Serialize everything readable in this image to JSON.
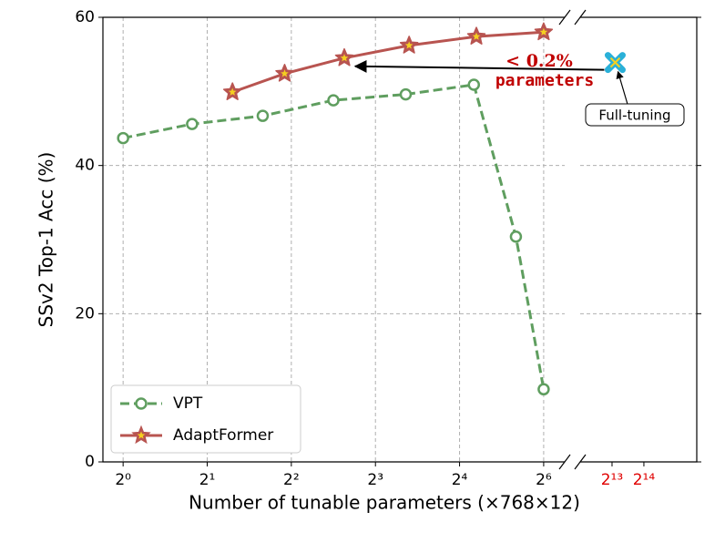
{
  "chart_data": {
    "type": "line",
    "ylabel": "SSv2 Top-1 Acc (%)",
    "xlabel": "Number of tunable parameters (×768×12)",
    "ylim": [
      0,
      60
    ],
    "yticks": [
      0,
      20,
      40,
      60
    ],
    "grid": true,
    "legend": "lower left",
    "x_segments": [
      {
        "xlim": [
          -0.24,
          5.25
        ],
        "tick_color": "#000000",
        "xticks": [
          {
            "value": 0,
            "label": "2⁰"
          },
          {
            "value": 1,
            "label": "2¹"
          },
          {
            "value": 2,
            "label": "2²"
          },
          {
            "value": 3,
            "label": "2³"
          },
          {
            "value": 4,
            "label": "2⁴"
          },
          {
            "value": 5,
            "label": "2⁶"
          }
        ]
      },
      {
        "xlim": [
          12,
          15.66
        ],
        "tick_color": "#e00000",
        "xticks": [
          {
            "value": 13,
            "label": "2¹³"
          },
          {
            "value": 14,
            "label": "2¹⁴"
          }
        ]
      }
    ],
    "series": [
      {
        "name": "VPT",
        "color": "#5f9e5f",
        "marker": "circle",
        "x": [
          0,
          0.82,
          1.66,
          2.5,
          3.36,
          4.17,
          4.67,
          5.0
        ],
        "values": [
          43.7,
          45.6,
          46.7,
          48.8,
          49.6,
          50.9,
          30.4,
          9.8
        ]
      },
      {
        "name": "AdaptFormer",
        "color": "#b85450",
        "marker": "star",
        "x": [
          1.3,
          1.92,
          2.63,
          3.4,
          4.2,
          5.0
        ],
        "values": [
          49.9,
          52.4,
          54.5,
          56.2,
          57.4,
          58.0
        ]
      }
    ],
    "full_tuning": {
      "label": "Full-tuning",
      "x": 13.1,
      "y": 53.9,
      "color": "#2ab0d8"
    },
    "annotation": [
      "< 0.2%",
      "parameters"
    ]
  }
}
